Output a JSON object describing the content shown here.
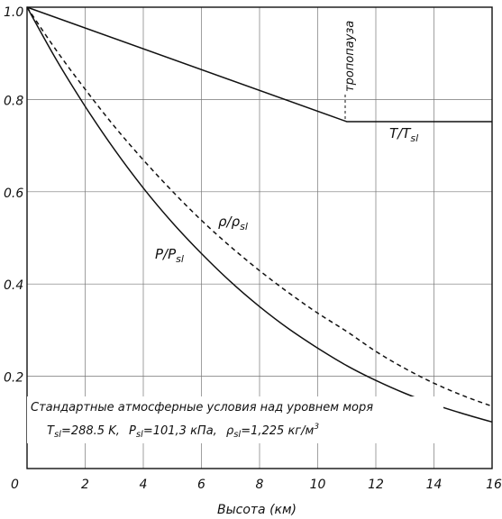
{
  "chart_data": {
    "type": "line",
    "xlabel": "Высота (км)",
    "xlim": [
      0,
      16
    ],
    "ylim": [
      0,
      1.0
    ],
    "grid": true,
    "x_ticks": [
      "0",
      "2",
      "4",
      "6",
      "8",
      "10",
      "12",
      "14",
      "16"
    ],
    "y_ticks": [
      "1.0",
      "0.8",
      "0.6",
      "0.4",
      "0.2"
    ],
    "x_tick_values": [
      0,
      2,
      4,
      6,
      8,
      10,
      12,
      14,
      16
    ],
    "y_tick_values": [
      1.0,
      0.8,
      0.6,
      0.4,
      0.2
    ],
    "series": [
      {
        "name": "T/Tsl",
        "label_main": "T/T",
        "label_sub": "sl",
        "style": "solid",
        "x": [
          0,
          11,
          16
        ],
        "y": [
          1.0,
          0.752,
          0.752
        ]
      },
      {
        "name": "P/Psl",
        "label_main": "P/P",
        "label_sub": "sl",
        "style": "solid",
        "x": [
          0,
          1,
          2,
          3,
          4,
          5,
          6,
          7,
          8,
          9,
          10,
          11,
          12,
          13,
          14,
          15,
          16
        ],
        "y": [
          1.0,
          0.887,
          0.785,
          0.692,
          0.608,
          0.533,
          0.466,
          0.405,
          0.351,
          0.303,
          0.261,
          0.223,
          0.191,
          0.163,
          0.139,
          0.119,
          0.101
        ]
      },
      {
        "name": "ρ/ρsl",
        "label_main": "ρ/ρ",
        "label_sub": "sl",
        "style": "dashed",
        "x": [
          0,
          1,
          2,
          3,
          4,
          5,
          6,
          7,
          8,
          9,
          10,
          11,
          12,
          13,
          14,
          15,
          16
        ],
        "y": [
          1.0,
          0.907,
          0.822,
          0.742,
          0.669,
          0.601,
          0.538,
          0.481,
          0.429,
          0.381,
          0.337,
          0.297,
          0.254,
          0.217,
          0.185,
          0.158,
          0.135
        ]
      }
    ],
    "annotations": {
      "tropopause": "тропопауза",
      "conditions_line1": "Стандартные атмосферные условия над уровнем моря",
      "conditions_line2": {
        "t_main": "T",
        "t_sub": "sl",
        "t_value": "=288.5 K,",
        "p_main": "P",
        "p_sub": "sl",
        "p_value": "=101,3 кПа,",
        "rho_main": "ρ",
        "rho_sub": "sl",
        "rho_value": "=1,225 кг/м",
        "rho_sup": "3"
      }
    }
  }
}
